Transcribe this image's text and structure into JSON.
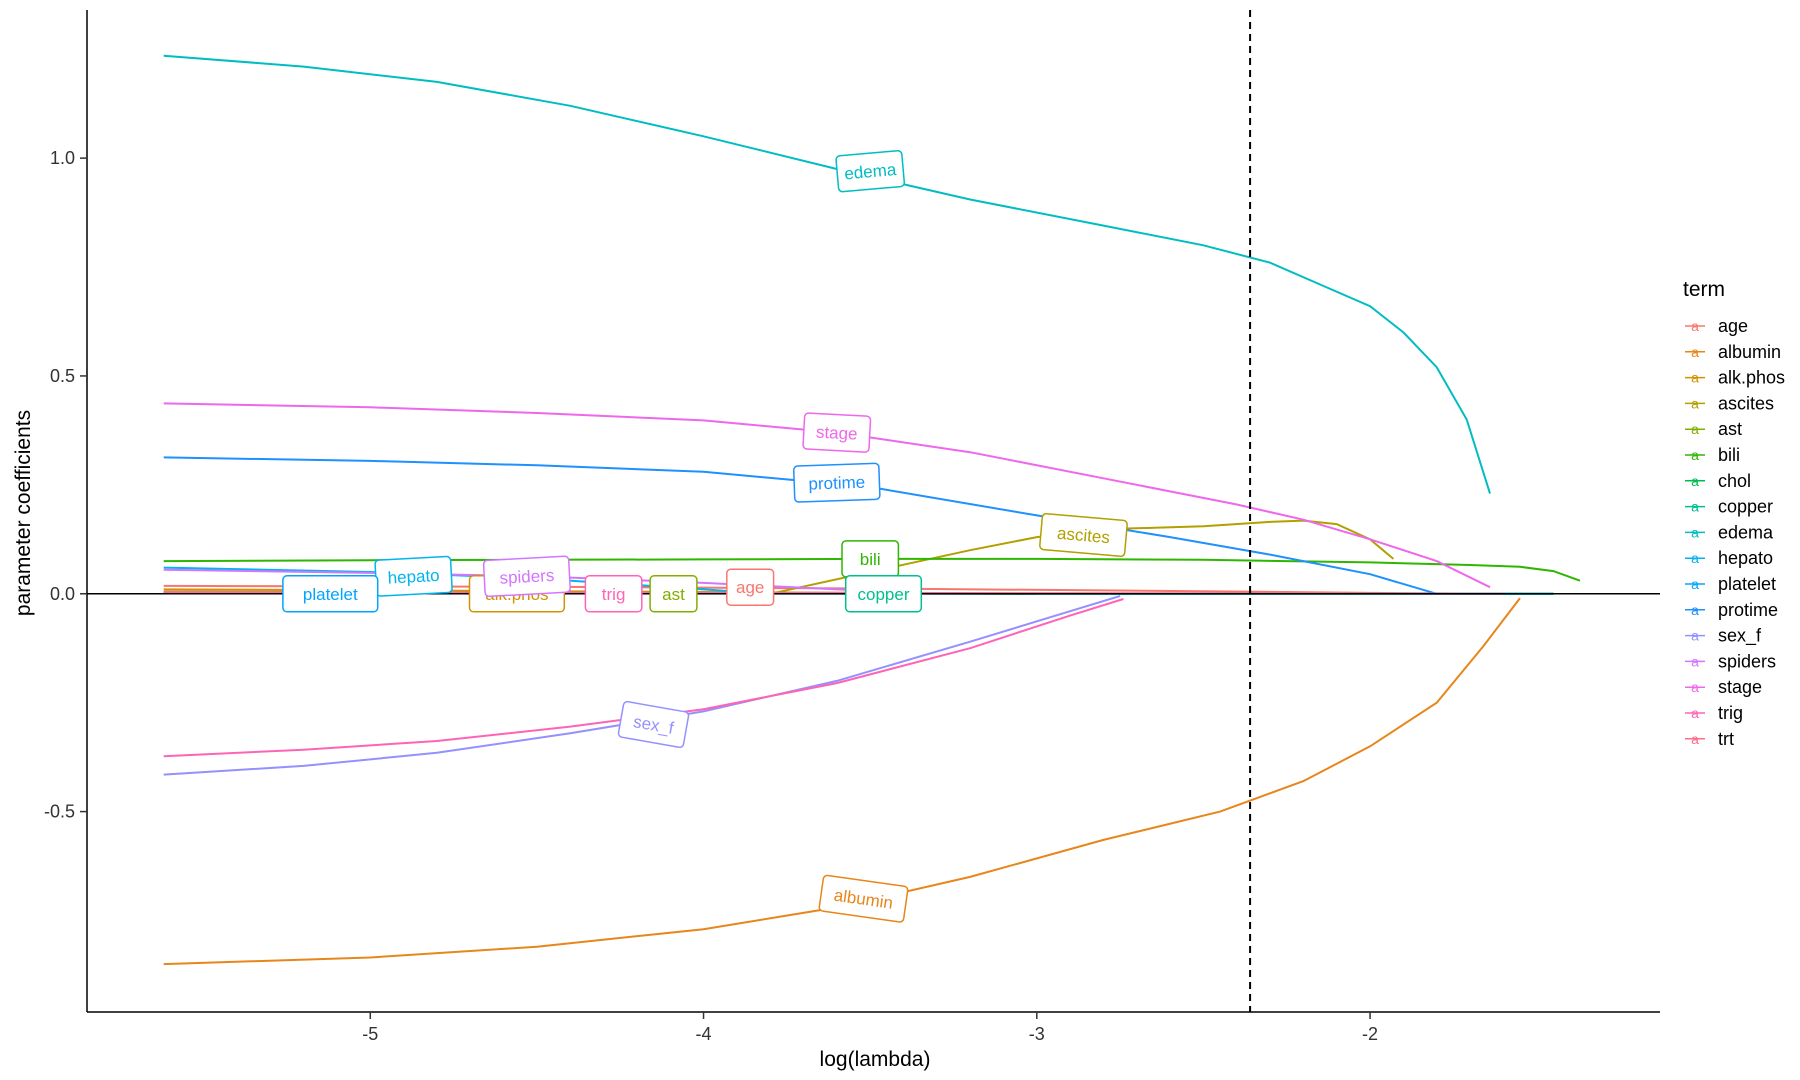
{
  "chart_data": {
    "type": "line",
    "xlabel": "log(lambda)",
    "ylabel": "parameter coefficients",
    "xlim": [
      -5.85,
      -1.13
    ],
    "ylim": [
      -0.96,
      1.34
    ],
    "xticks": [
      -5,
      -4,
      -3,
      -2
    ],
    "yticks": [
      -0.5,
      0.0,
      0.5,
      1.0
    ],
    "xtick_labels": [
      "-5",
      "-4",
      "-3",
      "-2"
    ],
    "ytick_labels": [
      "-0.5",
      "0.0",
      "0.5",
      "1.0"
    ],
    "zero_line": 0,
    "vline_x": -2.36,
    "grid": false,
    "legend": {
      "title": "term",
      "position": "right",
      "key_glyph": "a"
    },
    "series": [
      {
        "name": "age",
        "color": "#F8766D",
        "label_x": -3.86,
        "label_y": 0.015,
        "label_angle": 0,
        "x": [
          -5.62,
          -4.5,
          -3.5,
          -2.5,
          -2.0,
          -1.6
        ],
        "y": [
          0.018,
          0.016,
          0.012,
          0.006,
          0.002,
          0.0
        ]
      },
      {
        "name": "albumin",
        "color": "#E7861A",
        "label_x": -3.52,
        "label_y": -0.7,
        "label_angle": -8,
        "x": [
          -5.62,
          -5.0,
          -4.5,
          -4.0,
          -3.6,
          -3.2,
          -2.8,
          -2.45,
          -2.2,
          -2.0,
          -1.8,
          -1.66,
          -1.55
        ],
        "y": [
          -0.85,
          -0.835,
          -0.81,
          -0.77,
          -0.72,
          -0.65,
          -0.565,
          -0.5,
          -0.43,
          -0.35,
          -0.25,
          -0.12,
          -0.01
        ]
      },
      {
        "name": "alk.phos",
        "color": "#D39200",
        "label_x": -4.56,
        "label_y": 0.0,
        "label_angle": 0,
        "x": [
          -5.62,
          -5.0,
          -4.5,
          -4.0,
          -3.5,
          -3.0
        ],
        "y": [
          0.01,
          0.008,
          0.006,
          0.004,
          0.002,
          0.0
        ]
      },
      {
        "name": "ascites",
        "color": "#B3A000",
        "label_x": -2.86,
        "label_y": 0.135,
        "label_angle": -5,
        "x": [
          -3.8,
          -3.5,
          -3.2,
          -3.0,
          -2.8,
          -2.5,
          -2.3,
          -2.2,
          -2.1,
          -2.0,
          -1.93
        ],
        "y": [
          0.0,
          0.05,
          0.1,
          0.13,
          0.148,
          0.155,
          0.165,
          0.168,
          0.16,
          0.125,
          0.08
        ]
      },
      {
        "name": "ast",
        "color": "#83AD00",
        "label_x": -4.09,
        "label_y": 0.0,
        "label_angle": 0,
        "x": [
          -5.62,
          -5.0,
          -4.5,
          -4.0,
          -3.5,
          -3.0
        ],
        "y": [
          0.005,
          0.004,
          0.003,
          0.002,
          0.001,
          0.0
        ]
      },
      {
        "name": "bili",
        "color": "#2FB600",
        "label_x": -3.5,
        "label_y": 0.08,
        "label_angle": 0,
        "x": [
          -5.62,
          -5.0,
          -4.5,
          -4.0,
          -3.5,
          -3.0,
          -2.5,
          -2.0,
          -1.7,
          -1.55,
          -1.45,
          -1.37
        ],
        "y": [
          0.075,
          0.077,
          0.078,
          0.079,
          0.08,
          0.08,
          0.078,
          0.072,
          0.066,
          0.062,
          0.052,
          0.03
        ]
      },
      {
        "name": "chol",
        "color": "#00BB4E",
        "label_x": null,
        "label_y": null,
        "label_angle": 0,
        "x": [
          -5.62,
          -4.5,
          -3.5,
          -2.5,
          -1.45
        ],
        "y": [
          0.002,
          0.002,
          0.001,
          0.0,
          0.0
        ]
      },
      {
        "name": "copper",
        "color": "#00BF8C",
        "label_x": -3.46,
        "label_y": 0.0,
        "label_angle": 0,
        "x": [
          -5.62,
          -5.0,
          -4.5,
          -4.0,
          -3.5,
          -3.0,
          -2.5,
          -2.0,
          -1.45
        ],
        "y": [
          0.003,
          0.003,
          0.003,
          0.002,
          0.001,
          0.0,
          0.0,
          0.0,
          0.0
        ]
      },
      {
        "name": "edema",
        "color": "#00BDC2",
        "label_x": -3.5,
        "label_y": 0.97,
        "label_angle": 5,
        "x": [
          -5.62,
          -5.2,
          -4.8,
          -4.4,
          -4.0,
          -3.6,
          -3.2,
          -2.8,
          -2.5,
          -2.3,
          -2.15,
          -2.0,
          -1.9,
          -1.8,
          -1.71,
          -1.64
        ],
        "y": [
          1.235,
          1.21,
          1.175,
          1.12,
          1.05,
          0.975,
          0.905,
          0.845,
          0.8,
          0.76,
          0.71,
          0.66,
          0.6,
          0.52,
          0.4,
          0.23
        ]
      },
      {
        "name": "hepato",
        "color": "#00B4EF",
        "label_x": -4.87,
        "label_y": 0.04,
        "label_angle": 3,
        "x": [
          -5.62,
          -5.0,
          -4.5,
          -4.0,
          -3.8
        ],
        "y": [
          0.06,
          0.05,
          0.035,
          0.01,
          0.0
        ]
      },
      {
        "name": "platelet",
        "color": "#00A5FF",
        "label_x": -5.12,
        "label_y": 0.0,
        "label_angle": 0,
        "x": [
          -5.62,
          -4.5,
          -3.5,
          -2.5,
          -1.45
        ],
        "y": [
          0.002,
          0.001,
          0.0,
          0.0,
          0.0
        ]
      },
      {
        "name": "protime",
        "color": "#1E90FF",
        "label_x": -3.6,
        "label_y": 0.255,
        "label_angle": 2,
        "x": [
          -5.62,
          -5.0,
          -4.5,
          -4.0,
          -3.5,
          -3.0,
          -2.6,
          -2.3,
          -2.0,
          -1.8
        ],
        "y": [
          0.313,
          0.305,
          0.295,
          0.28,
          0.245,
          0.18,
          0.13,
          0.09,
          0.045,
          0.0
        ]
      },
      {
        "name": "sex_f",
        "color": "#9590FF",
        "label_x": -4.15,
        "label_y": -0.3,
        "label_angle": -10,
        "x": [
          -5.62,
          -5.2,
          -4.8,
          -4.4,
          -4.0,
          -3.6,
          -3.2,
          -2.9,
          -2.75
        ],
        "y": [
          -0.415,
          -0.395,
          -0.365,
          -0.32,
          -0.27,
          -0.2,
          -0.11,
          -0.04,
          -0.005
        ]
      },
      {
        "name": "spiders",
        "color": "#D376FF",
        "label_x": -4.53,
        "label_y": 0.04,
        "label_angle": 3,
        "x": [
          -5.62,
          -5.0,
          -4.5,
          -4.0,
          -3.6,
          -3.3
        ],
        "y": [
          0.055,
          0.048,
          0.04,
          0.025,
          0.01,
          0.0
        ]
      },
      {
        "name": "stage",
        "color": "#EF67EB",
        "label_x": -3.6,
        "label_y": 0.37,
        "label_angle": -3,
        "x": [
          -5.62,
          -5.0,
          -4.5,
          -4.0,
          -3.6,
          -3.2,
          -2.8,
          -2.4,
          -2.2,
          -2.0,
          -1.8,
          -1.64
        ],
        "y": [
          0.437,
          0.428,
          0.415,
          0.398,
          0.37,
          0.325,
          0.265,
          0.205,
          0.17,
          0.125,
          0.075,
          0.015
        ]
      },
      {
        "name": "trig",
        "color": "#FF63B6",
        "label_x": -4.27,
        "label_y": 0.0,
        "label_angle": 0,
        "x": [
          -5.62,
          -5.2,
          -4.8,
          -4.4,
          -4.0,
          -3.6,
          -3.2,
          -2.9,
          -2.74
        ],
        "y": [
          -0.373,
          -0.358,
          -0.338,
          -0.305,
          -0.265,
          -0.205,
          -0.125,
          -0.05,
          -0.012
        ]
      },
      {
        "name": "trt",
        "color": "#FF6C91",
        "label_x": null,
        "label_y": null,
        "label_angle": 0,
        "x": [
          -5.62,
          -4.5,
          -3.5,
          -2.5,
          -1.6
        ],
        "y": [
          0.004,
          0.003,
          0.002,
          0.001,
          0.0
        ]
      }
    ]
  }
}
